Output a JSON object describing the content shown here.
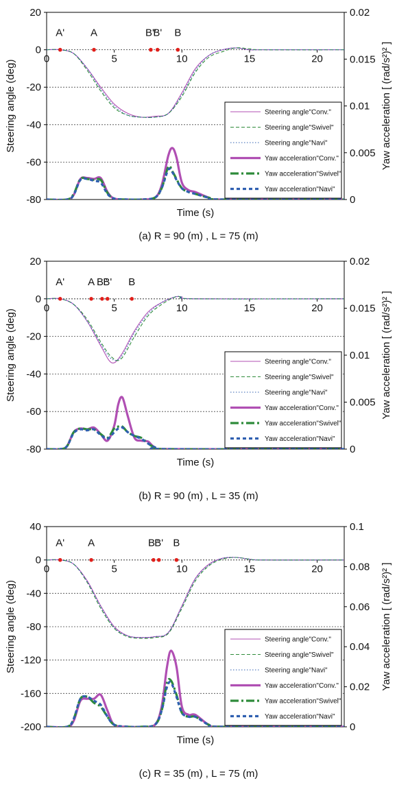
{
  "figure": {
    "captions": [
      "(a) R = 90 (m) , L = 75 (m)",
      "(b) R = 90 (m) , L = 35 (m)",
      "(c) R = 35 (m) , L = 75 (m)"
    ]
  },
  "colors": {
    "conv": "#b04fb3",
    "swivel": "#2e8b3a",
    "navi": "#2f5fb0",
    "marker": "#e0201b",
    "grid": "#444444",
    "axis": "#000000"
  },
  "chart_data": [
    {
      "type": "line",
      "caption": "(a) R = 90 (m) , L = 75 (m)",
      "xlabel": "Time (s)",
      "ylabel": "Steering angle (deg)",
      "y2label": "Yaw acceleration [ (rad/s²)² ]",
      "xlim": [
        0,
        22
      ],
      "ylim": [
        -80,
        20
      ],
      "y2lim": [
        0,
        0.02
      ],
      "xticks": [
        0,
        5,
        10,
        15,
        20
      ],
      "yticks": [
        20,
        0,
        -20,
        -40,
        -60,
        -80
      ],
      "y2ticks": [
        0.02,
        0.015,
        0.01,
        0.005,
        0
      ],
      "y2ticklabels": [
        "0.02",
        "0.015",
        "0.01",
        "0.005",
        "0"
      ],
      "grid": "horizontal dotted",
      "legend": "bottom-right",
      "markers": [
        {
          "label": "A'",
          "x": 1.0
        },
        {
          "label": "A",
          "x": 3.5
        },
        {
          "label": "B''",
          "x": 7.7
        },
        {
          "label": "B'",
          "x": 8.2
        },
        {
          "label": "B",
          "x": 9.7
        }
      ],
      "series": [
        {
          "name": "Steering angle\"Conv.\"",
          "axis": "left",
          "style": "solid-thin",
          "color_key": "conv",
          "x": [
            0,
            1,
            2,
            3,
            4,
            5,
            6,
            7,
            8,
            9,
            10,
            11,
            12,
            13,
            14,
            15,
            16,
            22
          ],
          "y": [
            0,
            0,
            -2,
            -10,
            -20,
            -29,
            -34,
            -36,
            -35.5,
            -34,
            -23,
            -10,
            -3,
            0,
            1,
            0,
            0,
            0
          ]
        },
        {
          "name": "Steering angle\"Swivel\"",
          "axis": "left",
          "style": "dashed-thin",
          "color_key": "swivel",
          "x": [
            0,
            1,
            2,
            3,
            4,
            5,
            6,
            7,
            8,
            9,
            10,
            11,
            12,
            13,
            14,
            15,
            16,
            22
          ],
          "y": [
            0,
            0,
            -2,
            -11,
            -22,
            -31,
            -35,
            -36,
            -36,
            -34,
            -25,
            -12,
            -4,
            -1,
            1,
            0.5,
            0,
            0
          ]
        },
        {
          "name": "Steering angle\"Navi\"",
          "axis": "left",
          "style": "dotted-thin",
          "color_key": "navi",
          "x": [
            0,
            1,
            2,
            3,
            4,
            5,
            6,
            7,
            8,
            9,
            10,
            11,
            12,
            13,
            14,
            15,
            16,
            22
          ],
          "y": [
            0,
            0,
            -2,
            -10,
            -21,
            -30,
            -35,
            -36,
            -36,
            -34,
            -24,
            -11,
            -3,
            0,
            1,
            0,
            0,
            0
          ]
        },
        {
          "name": "Yaw acceleration\"Conv.\"",
          "axis": "right",
          "style": "solid-thick",
          "color_key": "conv",
          "x": [
            0,
            1.5,
            2,
            2.5,
            3,
            3.5,
            4,
            4.5,
            5,
            6,
            7,
            8,
            8.5,
            9,
            9.3,
            9.6,
            10,
            10.5,
            11,
            12,
            13,
            22
          ],
          "y": [
            0,
            0,
            0.0005,
            0.0022,
            0.0023,
            0.0022,
            0.0023,
            0.0008,
            0.0001,
            0,
            0,
            0.0002,
            0.0015,
            0.0047,
            0.0055,
            0.0045,
            0.0018,
            0.001,
            0.0008,
            0.0002,
            0,
            0
          ]
        },
        {
          "name": "Yaw acceleration\"Swivel\"",
          "axis": "right",
          "style": "dashdot-thick",
          "color_key": "swivel",
          "x": [
            0,
            1.5,
            2,
            2.5,
            3,
            3.5,
            4,
            4.5,
            5,
            6,
            7,
            8,
            8.5,
            9,
            9.3,
            9.6,
            10,
            10.5,
            11,
            12,
            13,
            22
          ],
          "y": [
            0,
            0,
            0.0006,
            0.0022,
            0.0022,
            0.0021,
            0.0021,
            0.0007,
            0.0001,
            0,
            0,
            0.0002,
            0.0012,
            0.0035,
            0.003,
            0.0022,
            0.0012,
            0.0008,
            0.0006,
            0.0002,
            0,
            0
          ]
        },
        {
          "name": "Yaw acceleration\"Navi\"",
          "axis": "right",
          "style": "dotted-thick",
          "color_key": "navi",
          "x": [
            0,
            1.5,
            2,
            2.5,
            3,
            3.5,
            4,
            4.5,
            5,
            6,
            7,
            8,
            8.5,
            9,
            9.3,
            9.6,
            10,
            10.5,
            11,
            12,
            13,
            22
          ],
          "y": [
            0,
            0,
            0.0005,
            0.0021,
            0.0022,
            0.002,
            0.0018,
            0.0006,
            0.0001,
            0,
            0,
            0.0002,
            0.0012,
            0.0032,
            0.0029,
            0.0021,
            0.0012,
            0.0008,
            0.0006,
            0.0002,
            0,
            0
          ]
        }
      ]
    },
    {
      "type": "line",
      "caption": "(b) R = 90 (m) , L = 35 (m)",
      "xlabel": "Time  (s)",
      "ylabel": "Steering angle (deg)",
      "y2label": "Yaw acceleration [ (rad/s²)² ]",
      "xlim": [
        0,
        22
      ],
      "ylim": [
        -80,
        20
      ],
      "y2lim": [
        0,
        0.02
      ],
      "xticks": [
        0,
        5,
        10,
        15,
        20
      ],
      "yticks": [
        20,
        0,
        -20,
        -40,
        -60,
        -80
      ],
      "y2ticks": [
        0.02,
        0.015,
        0.01,
        0.005,
        0
      ],
      "y2ticklabels": [
        "0.02",
        "0.015",
        "0.01",
        "0.005",
        "0"
      ],
      "grid": "horizontal dotted",
      "legend": "bottom-right",
      "markers": [
        {
          "label": "A'",
          "x": 1.0
        },
        {
          "label": "A",
          "x": 3.3
        },
        {
          "label": "B''",
          "x": 4.1
        },
        {
          "label": "B'",
          "x": 4.5
        },
        {
          "label": "B",
          "x": 6.3
        }
      ],
      "series": [
        {
          "name": "Steering angle\"Conv.\"",
          "axis": "left",
          "style": "solid-thin",
          "color_key": "conv",
          "x": [
            0,
            1,
            2,
            3,
            4,
            4.8,
            5.5,
            6.5,
            7.5,
            8.5,
            9.5,
            10,
            11,
            22
          ],
          "y": [
            0,
            0,
            -3,
            -12,
            -25,
            -34,
            -30,
            -17,
            -7,
            -2,
            1,
            1,
            0,
            0
          ]
        },
        {
          "name": "Steering angle\"Swivel\"",
          "axis": "left",
          "style": "dashed-thin",
          "color_key": "swivel",
          "x": [
            0,
            1,
            2,
            3,
            4,
            4.8,
            5.5,
            6.5,
            7.5,
            8.5,
            9.5,
            10,
            11,
            22
          ],
          "y": [
            0,
            0,
            -3,
            -11,
            -23,
            -31,
            -32,
            -20,
            -9,
            -3,
            1,
            1,
            0,
            0
          ]
        },
        {
          "name": "Steering angle\"Navi\"",
          "axis": "left",
          "style": "dotted-thin",
          "color_key": "navi",
          "x": [
            0,
            1,
            2,
            3,
            4,
            4.8,
            5.5,
            6.5,
            7.5,
            8.5,
            9.5,
            10,
            11,
            22
          ],
          "y": [
            0,
            0,
            -3,
            -12,
            -24,
            -32,
            -31,
            -18,
            -8,
            -2,
            1,
            1,
            0,
            0
          ]
        },
        {
          "name": "Yaw acceleration\"Conv.\"",
          "axis": "right",
          "style": "solid-thick",
          "color_key": "conv",
          "x": [
            0,
            1,
            1.5,
            2,
            2.5,
            3,
            3.5,
            4,
            4.5,
            5,
            5.3,
            5.6,
            6,
            6.5,
            7,
            7.5,
            8,
            9,
            22
          ],
          "y": [
            0,
            0,
            0.0003,
            0.0018,
            0.0022,
            0.0021,
            0.0023,
            0.0016,
            0.0009,
            0.0025,
            0.0048,
            0.0055,
            0.0035,
            0.0012,
            0.0009,
            0.0008,
            0.0002,
            0,
            0
          ]
        },
        {
          "name": "Yaw acceleration\"Swivel\"",
          "axis": "right",
          "style": "dashdot-thick",
          "color_key": "swivel",
          "x": [
            0,
            1,
            1.5,
            2,
            2.5,
            3,
            3.5,
            4,
            4.5,
            5,
            5.3,
            5.6,
            6,
            6.5,
            7,
            7.5,
            8,
            9,
            22
          ],
          "y": [
            0,
            0,
            0.0003,
            0.0018,
            0.0022,
            0.0021,
            0.0021,
            0.0016,
            0.0012,
            0.0022,
            0.0024,
            0.0024,
            0.0018,
            0.0014,
            0.0012,
            0.0006,
            0.0002,
            0,
            0
          ]
        },
        {
          "name": "Yaw acceleration\"Navi\"",
          "axis": "right",
          "style": "dotted-thick",
          "color_key": "navi",
          "x": [
            0,
            1,
            1.5,
            2,
            2.5,
            3,
            3.5,
            4,
            4.5,
            5,
            5.3,
            5.6,
            6,
            6.5,
            7,
            7.5,
            8,
            9,
            22
          ],
          "y": [
            0,
            0,
            0.0003,
            0.0017,
            0.0021,
            0.002,
            0.0021,
            0.0015,
            0.0011,
            0.0018,
            0.0022,
            0.0023,
            0.0018,
            0.0014,
            0.0011,
            0.0006,
            0.0002,
            0,
            0
          ]
        }
      ]
    },
    {
      "type": "line",
      "caption": "(c) R = 35 (m) , L = 75 (m)",
      "xlabel": "Time (s)",
      "ylabel": "Steering angle (deg)",
      "y2label": "Yaw acceleration [ (rad/s²)² ]",
      "xlim": [
        0,
        22
      ],
      "ylim": [
        -200,
        40
      ],
      "y2lim": [
        0,
        0.1
      ],
      "xticks": [
        0,
        5,
        10,
        15,
        20
      ],
      "yticks": [
        40,
        0,
        -40,
        -80,
        -120,
        -160,
        -200
      ],
      "y2ticks": [
        0.1,
        0.08,
        0.06,
        0.04,
        0.02,
        0
      ],
      "y2ticklabels": [
        "0.1",
        "0.08",
        "0.06",
        "0.04",
        "0.02",
        "0"
      ],
      "grid": "horizontal dotted",
      "legend": "bottom-right",
      "markers": [
        {
          "label": "A'",
          "x": 1.0
        },
        {
          "label": "A",
          "x": 3.3
        },
        {
          "label": "B''",
          "x": 7.9
        },
        {
          "label": "B'",
          "x": 8.3
        },
        {
          "label": "B",
          "x": 9.6
        }
      ],
      "series": [
        {
          "name": "Steering angle\"Conv.\"",
          "axis": "left",
          "style": "solid-thin",
          "color_key": "conv",
          "x": [
            0,
            1,
            2,
            3,
            4,
            5,
            6,
            7,
            8,
            9,
            10,
            11,
            12,
            13,
            14,
            15,
            16,
            22
          ],
          "y": [
            0,
            0,
            -5,
            -25,
            -55,
            -80,
            -91,
            -93,
            -92,
            -87,
            -55,
            -22,
            -5,
            2,
            3,
            1,
            0,
            0
          ]
        },
        {
          "name": "Steering angle\"Swivel\"",
          "axis": "left",
          "style": "dashed-thin",
          "color_key": "swivel",
          "x": [
            0,
            1,
            2,
            3,
            4,
            5,
            6,
            7,
            8,
            9,
            10,
            11,
            12,
            13,
            14,
            15,
            16,
            22
          ],
          "y": [
            0,
            0,
            -5,
            -27,
            -58,
            -82,
            -92,
            -94,
            -93,
            -88,
            -58,
            -25,
            -7,
            1,
            3,
            1,
            0,
            0
          ]
        },
        {
          "name": "Steering angle\"Navi\"",
          "axis": "left",
          "style": "dotted-thin",
          "color_key": "navi",
          "x": [
            0,
            1,
            2,
            3,
            4,
            5,
            6,
            7,
            8,
            9,
            10,
            11,
            12,
            13,
            14,
            15,
            16,
            22
          ],
          "y": [
            0,
            0,
            -5,
            -26,
            -56,
            -81,
            -91,
            -93,
            -92,
            -87,
            -56,
            -23,
            -6,
            2,
            3,
            1,
            0,
            0
          ]
        },
        {
          "name": "Yaw acceleration\"Conv.\"",
          "axis": "right",
          "style": "solid-thick",
          "color_key": "conv",
          "x": [
            0,
            1.5,
            2,
            2.5,
            3,
            3.5,
            4,
            4.5,
            5,
            6,
            7,
            8,
            8.5,
            8.9,
            9.2,
            9.6,
            10,
            10.5,
            11,
            12,
            13,
            22
          ],
          "y": [
            0,
            0,
            0.003,
            0.013,
            0.014,
            0.014,
            0.016,
            0.008,
            0.001,
            0,
            0,
            0.001,
            0.01,
            0.03,
            0.038,
            0.03,
            0.01,
            0.006,
            0.006,
            0.001,
            0,
            0
          ]
        },
        {
          "name": "Yaw acceleration\"Swivel\"",
          "axis": "right",
          "style": "dashdot-thick",
          "color_key": "swivel",
          "x": [
            0,
            1.5,
            2,
            2.5,
            3,
            3.5,
            4,
            4.5,
            5,
            6,
            7,
            8,
            8.5,
            8.9,
            9.2,
            9.6,
            10,
            10.5,
            11,
            12,
            13,
            22
          ],
          "y": [
            0,
            0,
            0.004,
            0.014,
            0.015,
            0.012,
            0.01,
            0.005,
            0.001,
            0,
            0,
            0.001,
            0.008,
            0.022,
            0.023,
            0.016,
            0.007,
            0.005,
            0.005,
            0.001,
            0,
            0
          ]
        },
        {
          "name": "Yaw acceleration\"Navi\"",
          "axis": "right",
          "style": "dotted-thick",
          "color_key": "navi",
          "x": [
            0,
            1.5,
            2,
            2.5,
            3,
            3.5,
            4,
            4.5,
            5,
            6,
            7,
            8,
            8.5,
            8.9,
            9.2,
            9.6,
            10,
            10.5,
            11,
            12,
            13,
            22
          ],
          "y": [
            0,
            0,
            0.004,
            0.014,
            0.015,
            0.013,
            0.011,
            0.005,
            0.001,
            0,
            0,
            0.001,
            0.008,
            0.02,
            0.022,
            0.015,
            0.007,
            0.005,
            0.005,
            0.001,
            0,
            0
          ]
        }
      ]
    }
  ]
}
